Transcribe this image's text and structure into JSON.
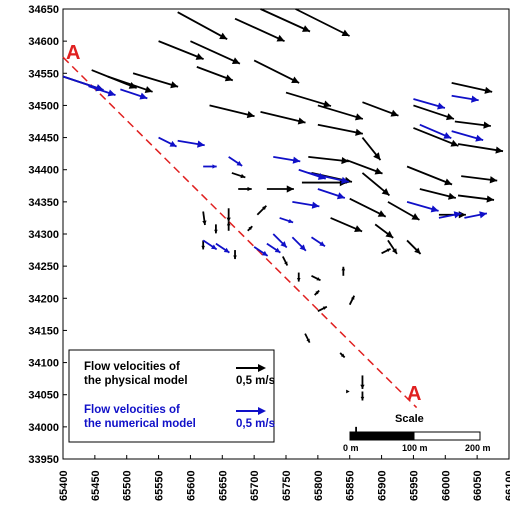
{
  "chart_data": {
    "type": "vector-field",
    "x_ticks": [
      "65400",
      "65450",
      "65500",
      "65550",
      "65600",
      "65650",
      "65700",
      "65750",
      "65800",
      "65850",
      "65900",
      "65950",
      "66000",
      "66050",
      "66100"
    ],
    "y_ticks": [
      "34650",
      "34600",
      "34550",
      "34500",
      "34450",
      "34400",
      "34350",
      "34300",
      "34250",
      "34200",
      "34150",
      "34100",
      "34050",
      "34000",
      "33950"
    ],
    "xlim": [
      65400,
      66100
    ],
    "ylim": [
      33950,
      34650
    ],
    "section_line": {
      "label_start": "A",
      "label_end": "A",
      "start": [
        65400,
        34575
      ],
      "end": [
        65955,
        34030
      ],
      "color": "#e02020"
    },
    "legend": {
      "physical_label": [
        "Flow velocities of",
        "the physical model"
      ],
      "physical_value": "0,5 m/s",
      "physical_color": "#000000",
      "numerical_label": [
        "Flow velocities of",
        "the numerical model"
      ],
      "numerical_value": "0,5 m/s",
      "numerical_color": "#1010c8"
    },
    "scale_bar": {
      "title": "Scale",
      "labels": [
        "0 m",
        "100 m",
        "200 m"
      ]
    },
    "vectors_physical": [
      [
        65400,
        34545,
        0.45,
        -0.15
      ],
      [
        65445,
        34555,
        0.5,
        -0.2
      ],
      [
        65470,
        34545,
        0.5,
        -0.17
      ],
      [
        65510,
        34550,
        0.5,
        -0.15
      ],
      [
        65550,
        34600,
        0.5,
        -0.2
      ],
      [
        65580,
        34645,
        0.55,
        -0.3
      ],
      [
        65600,
        34600,
        0.55,
        -0.25
      ],
      [
        65610,
        34560,
        0.4,
        -0.15
      ],
      [
        65670,
        34635,
        0.55,
        -0.25
      ],
      [
        65710,
        34650,
        0.55,
        -0.25
      ],
      [
        65765,
        34650,
        0.6,
        -0.3
      ],
      [
        65700,
        34570,
        0.5,
        -0.25
      ],
      [
        65750,
        34520,
        0.5,
        -0.15
      ],
      [
        65630,
        34500,
        0.5,
        -0.12
      ],
      [
        65710,
        34490,
        0.5,
        -0.12
      ],
      [
        65800,
        34500,
        0.5,
        -0.15
      ],
      [
        65800,
        34470,
        0.5,
        -0.1
      ],
      [
        65870,
        34505,
        0.4,
        -0.15
      ],
      [
        65950,
        34500,
        0.45,
        -0.15
      ],
      [
        66010,
        34535,
        0.45,
        -0.1
      ],
      [
        65950,
        34465,
        0.5,
        -0.2
      ],
      [
        66015,
        34475,
        0.4,
        -0.05
      ],
      [
        65870,
        34450,
        0.2,
        -0.25
      ],
      [
        65870,
        34395,
        0.3,
        -0.25
      ],
      [
        65785,
        34420,
        0.45,
        -0.05
      ],
      [
        65790,
        34395,
        0.45,
        -0.1
      ],
      [
        65845,
        34415,
        0.4,
        -0.15
      ],
      [
        65775,
        34380,
        0.5,
        0.0
      ],
      [
        66020,
        34440,
        0.5,
        -0.08
      ],
      [
        65940,
        34405,
        0.5,
        -0.2
      ],
      [
        66025,
        34390,
        0.4,
        -0.05
      ],
      [
        65960,
        34370,
        0.4,
        -0.1
      ],
      [
        66020,
        34360,
        0.4,
        -0.05
      ],
      [
        65720,
        34370,
        0.3,
        0.0
      ],
      [
        65850,
        34355,
        0.4,
        -0.2
      ],
      [
        65820,
        34325,
        0.35,
        -0.15
      ],
      [
        65910,
        34350,
        0.35,
        -0.2
      ],
      [
        65990,
        34330,
        0.3,
        0.0
      ],
      [
        65890,
        34315,
        0.2,
        -0.15
      ],
      [
        65910,
        34290,
        0.1,
        -0.15
      ],
      [
        65940,
        34290,
        0.15,
        -0.15
      ],
      [
        65900,
        34270,
        0.1,
        0.05
      ],
      [
        65665,
        34395,
        0.15,
        -0.05
      ],
      [
        65675,
        34370,
        0.15,
        0.0
      ],
      [
        65660,
        34340,
        0.0,
        -0.15
      ],
      [
        65620,
        34335,
        0.02,
        -0.15
      ],
      [
        65640,
        34315,
        0.0,
        -0.1
      ],
      [
        65660,
        34305,
        0.0,
        0.1
      ],
      [
        65690,
        34305,
        0.05,
        0.05
      ],
      [
        65705,
        34330,
        0.1,
        0.1
      ],
      [
        65620,
        34290,
        0.0,
        -0.1
      ],
      [
        65670,
        34275,
        0.0,
        -0.1
      ],
      [
        65745,
        34265,
        0.05,
        -0.1
      ],
      [
        65770,
        34240,
        0.0,
        -0.1
      ],
      [
        65790,
        34235,
        0.1,
        -0.05
      ],
      [
        65795,
        34205,
        0.05,
        0.05
      ],
      [
        65840,
        34235,
        0.0,
        0.1
      ],
      [
        65800,
        34180,
        0.1,
        0.05
      ],
      [
        65850,
        34190,
        0.05,
        0.1
      ],
      [
        65780,
        34145,
        0.05,
        -0.1
      ],
      [
        65835,
        34115,
        0.05,
        -0.05
      ],
      [
        65870,
        34055,
        0.0,
        -0.1
      ],
      [
        65850,
        34055,
        0.0,
        0.0
      ],
      [
        65930,
        33990,
        0.0,
        0.0
      ],
      [
        65860,
        34000,
        0.0,
        -0.1
      ],
      [
        65870,
        34080,
        0.0,
        -0.15
      ]
    ],
    "vectors_numerical": [
      [
        65400,
        34545,
        0.45,
        -0.15
      ],
      [
        65440,
        34530,
        0.3,
        -0.1
      ],
      [
        65490,
        34525,
        0.3,
        -0.1
      ],
      [
        65550,
        34450,
        0.2,
        -0.1
      ],
      [
        65580,
        34445,
        0.3,
        -0.05
      ],
      [
        65620,
        34405,
        0.15,
        0.0
      ],
      [
        65660,
        34420,
        0.15,
        -0.1
      ],
      [
        65730,
        34420,
        0.3,
        -0.05
      ],
      [
        65770,
        34400,
        0.3,
        -0.1
      ],
      [
        65785,
        34395,
        0.45,
        -0.1
      ],
      [
        65800,
        34370,
        0.3,
        -0.1
      ],
      [
        65760,
        34350,
        0.3,
        -0.05
      ],
      [
        65950,
        34510,
        0.35,
        -0.1
      ],
      [
        66010,
        34515,
        0.3,
        -0.05
      ],
      [
        65960,
        34470,
        0.35,
        -0.15
      ],
      [
        66010,
        34460,
        0.35,
        -0.1
      ],
      [
        65940,
        34350,
        0.35,
        -0.1
      ],
      [
        65990,
        34325,
        0.25,
        0.05
      ],
      [
        66030,
        34325,
        0.25,
        0.05
      ],
      [
        65740,
        34325,
        0.15,
        -0.05
      ],
      [
        65730,
        34300,
        0.15,
        -0.15
      ],
      [
        65760,
        34295,
        0.15,
        -0.15
      ],
      [
        65790,
        34295,
        0.15,
        -0.1
      ],
      [
        65700,
        34280,
        0.15,
        -0.1
      ],
      [
        65720,
        34285,
        0.15,
        -0.1
      ],
      [
        65620,
        34290,
        0.15,
        -0.1
      ],
      [
        65640,
        34285,
        0.15,
        -0.1
      ]
    ]
  }
}
